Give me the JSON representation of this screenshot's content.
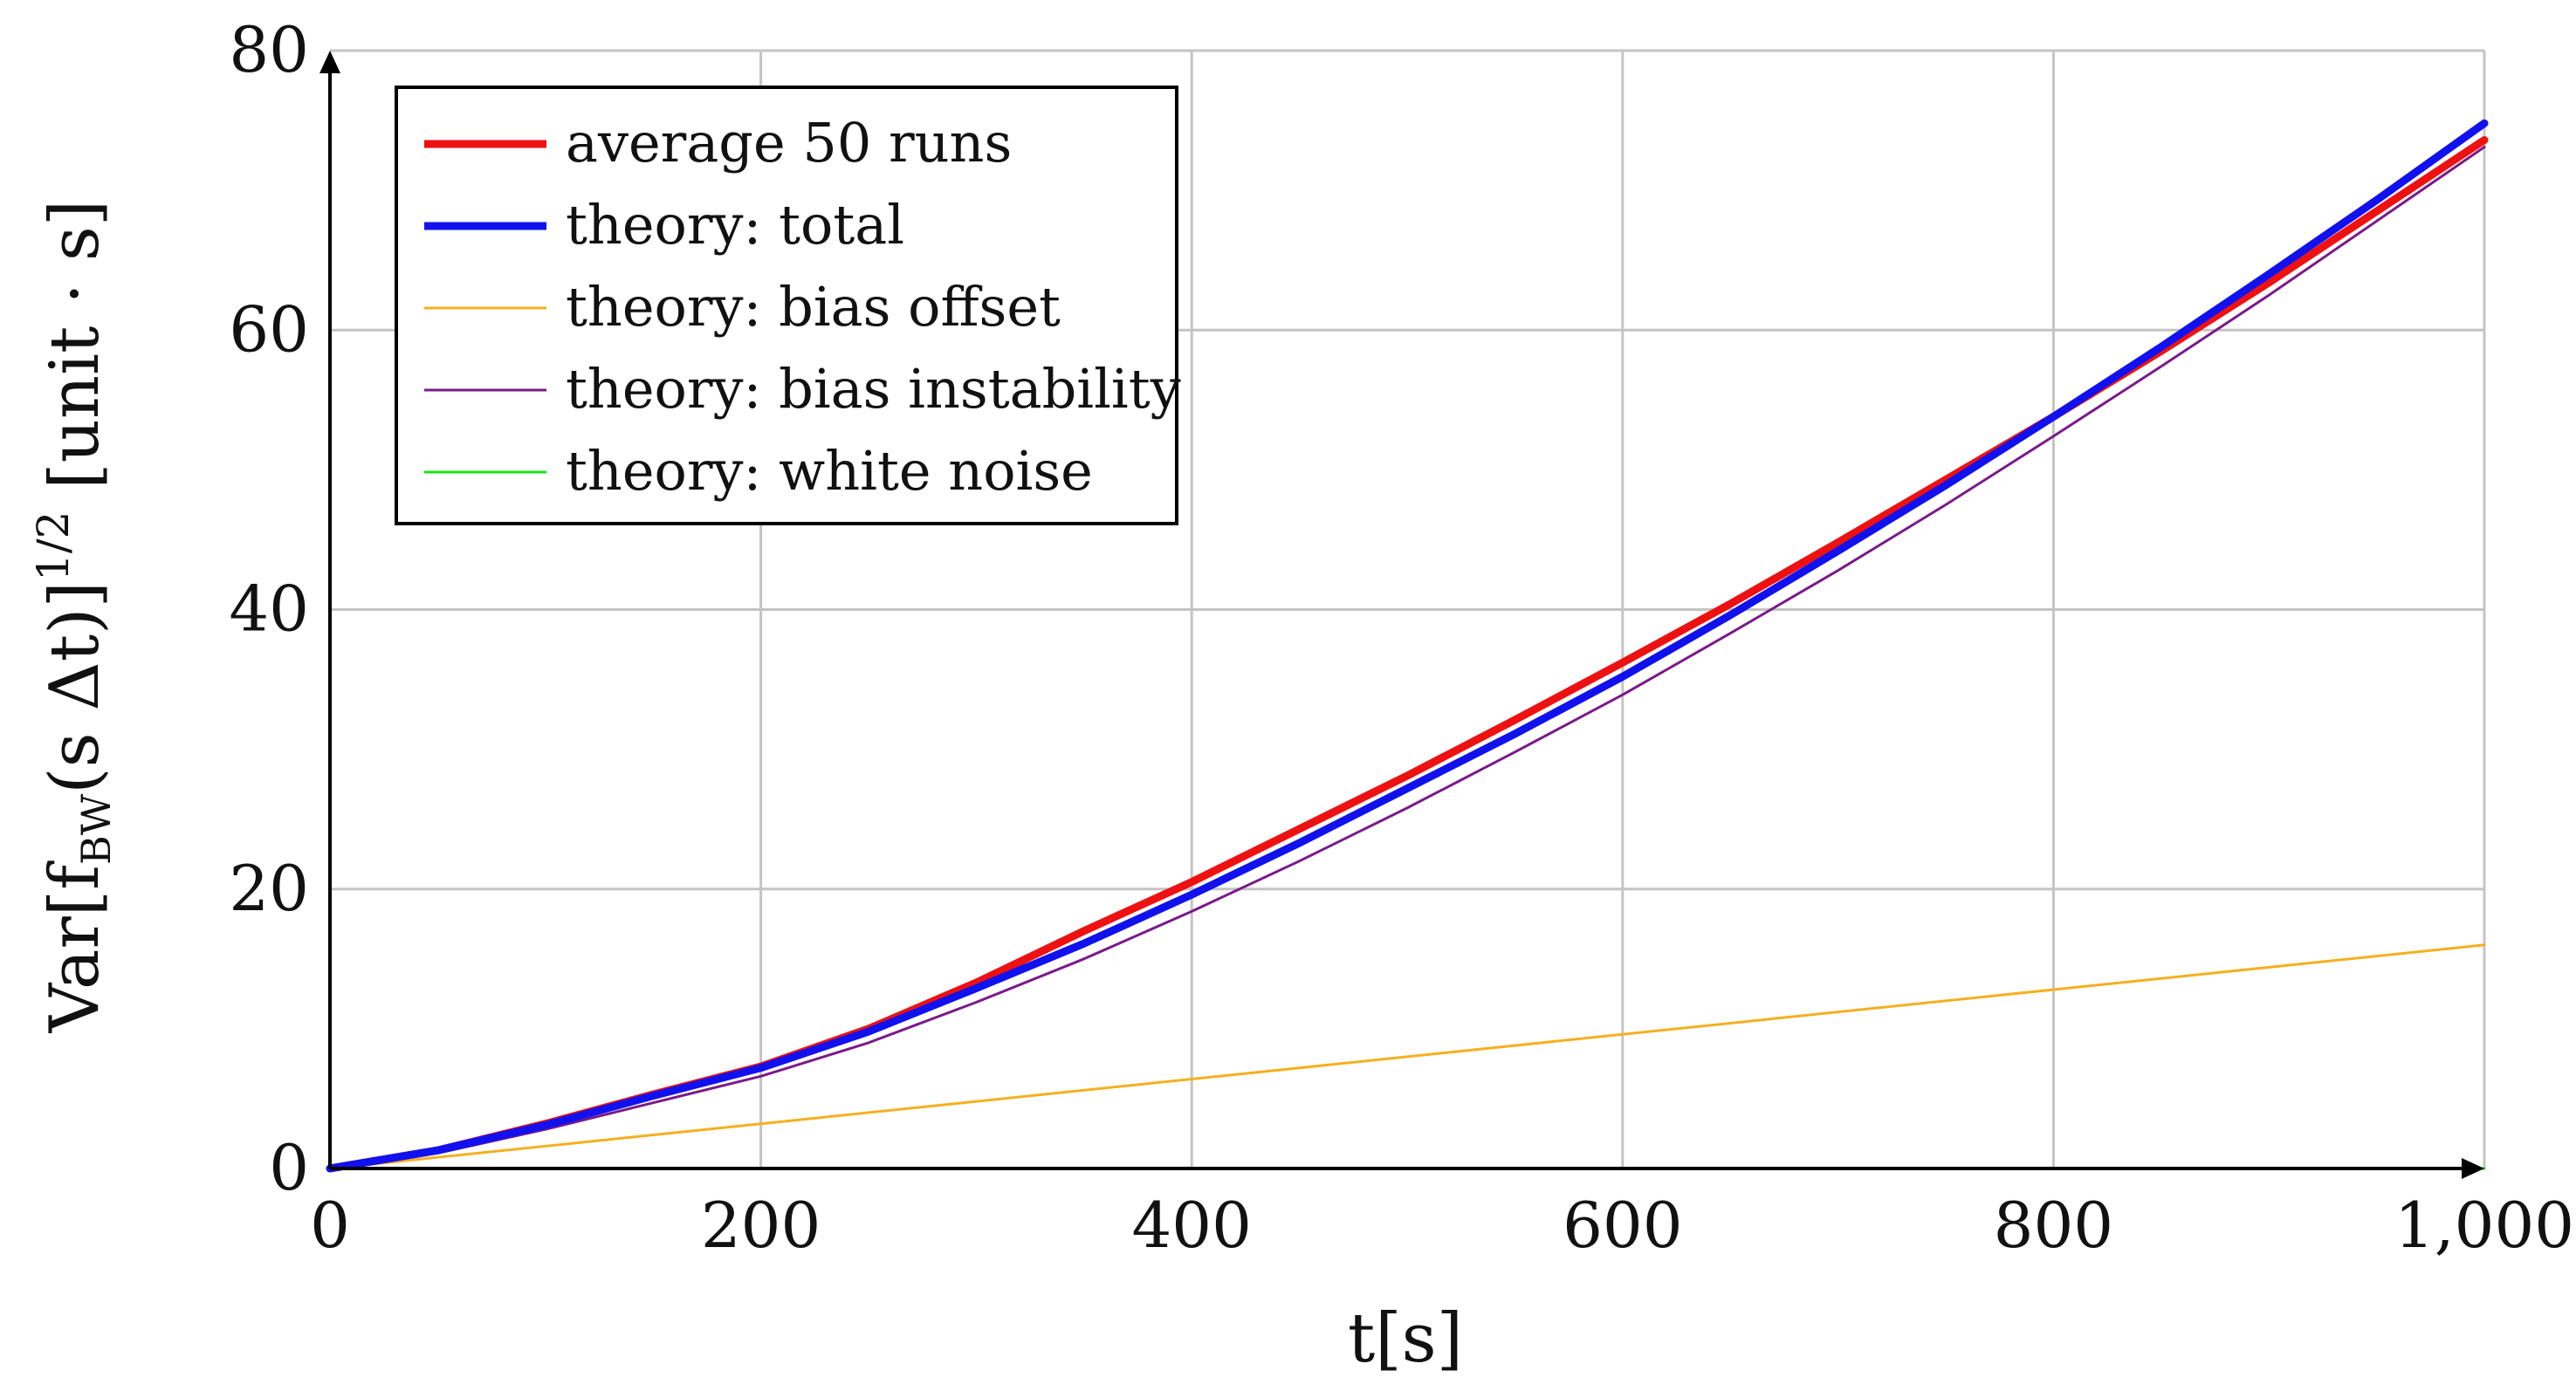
{
  "chart_data": {
    "type": "line",
    "xlabel": "t[s]",
    "ylabel": "Var[f_BW(s Δt)]^1/2 [unit · s]",
    "ylabel_parts": {
      "main": "Var[f",
      "sub": "BW",
      "mid": "(s Δt)]",
      "sup": "1/2",
      "unit": " [unit · s]"
    },
    "xlim": [
      0,
      1000
    ],
    "ylim": [
      0,
      80
    ],
    "xticks": [
      0,
      200,
      400,
      600,
      800,
      1000
    ],
    "xtick_labels": [
      "0",
      "200",
      "400",
      "600",
      "800",
      "1,000"
    ],
    "yticks": [
      0,
      20,
      40,
      60,
      80
    ],
    "ytick_labels": [
      "0",
      "20",
      "40",
      "60",
      "80"
    ],
    "grid": true,
    "legend_position": "top-left",
    "series": [
      {
        "name": "average 50 runs",
        "color": "#ee1111",
        "x": [
          0,
          50,
          100,
          150,
          200,
          250,
          300,
          350,
          400,
          450,
          500,
          550,
          600,
          650,
          700,
          750,
          800,
          850,
          900,
          950,
          1000
        ],
        "y": [
          0,
          1.3,
          3.2,
          5.3,
          7.3,
          10.0,
          13.3,
          17.0,
          20.5,
          24.3,
          28.1,
          32.1,
          36.2,
          40.4,
          44.8,
          49.3,
          53.8,
          58.5,
          63.4,
          68.5,
          73.6
        ]
      },
      {
        "name": "theory: total",
        "color": "#1111ee",
        "x": [
          0,
          50,
          100,
          150,
          200,
          250,
          300,
          350,
          400,
          450,
          500,
          550,
          600,
          650,
          700,
          750,
          800,
          850,
          900,
          950,
          1000
        ],
        "y": [
          0,
          1.3,
          3.1,
          5.2,
          7.2,
          9.8,
          12.9,
          16.1,
          19.6,
          23.3,
          27.2,
          31.1,
          35.2,
          39.6,
          44.2,
          48.9,
          53.8,
          58.8,
          64.0,
          69.3,
          74.8
        ]
      },
      {
        "name": "theory: bias offset",
        "color": "#f5b01f",
        "x": [
          0,
          1000
        ],
        "y": [
          0,
          16.0
        ]
      },
      {
        "name": "theory: bias instability",
        "color": "#7a1a8a",
        "x": [
          0,
          50,
          100,
          150,
          200,
          250,
          300,
          350,
          400,
          450,
          500,
          550,
          600,
          650,
          700,
          750,
          800,
          850,
          900,
          950,
          1000
        ],
        "y": [
          0,
          1.1,
          2.8,
          4.7,
          6.6,
          9.0,
          11.9,
          15.0,
          18.4,
          22.0,
          25.8,
          29.8,
          33.9,
          38.3,
          42.8,
          47.5,
          52.4,
          57.4,
          62.5,
          67.8,
          73.1
        ]
      },
      {
        "name": "theory: white noise",
        "color": "#18e018",
        "x": [
          0,
          1000
        ],
        "y": [
          0,
          0
        ]
      }
    ],
    "line_widths": [
      9,
      9,
      3,
      3,
      3
    ]
  }
}
